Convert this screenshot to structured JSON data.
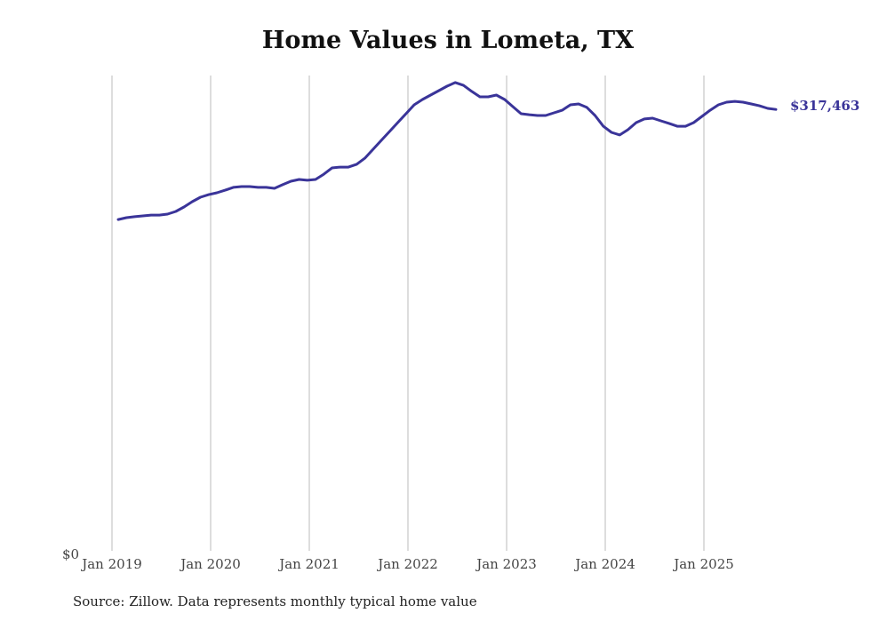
{
  "chart_data": {
    "type": "line",
    "title": "Home Values in Lometa, TX",
    "xlabel": "",
    "ylabel": "",
    "x_start": "2019-01",
    "x_frequency": "monthly",
    "x_tick_labels": [
      "Jan 2019",
      "Jan 2020",
      "Jan 2021",
      "Jan 2022",
      "Jan 2023",
      "Jan 2024",
      "Jan 2025"
    ],
    "y_tick_labels": [
      "$0"
    ],
    "ylim": [
      0,
      342000
    ],
    "grid": "vertical",
    "series": [
      {
        "name": "Typical home value",
        "color": "#3a3499",
        "end_label": "$317,463",
        "values": [
          238300,
          239600,
          240300,
          240900,
          241500,
          241500,
          242200,
          244100,
          247300,
          251100,
          254300,
          256200,
          257500,
          259400,
          261400,
          262000,
          262000,
          261400,
          261400,
          260700,
          263300,
          265800,
          267100,
          266500,
          267100,
          270900,
          275400,
          276000,
          276000,
          278000,
          282400,
          288800,
          295200,
          301600,
          308000,
          314400,
          320800,
          324600,
          327800,
          331000,
          334200,
          336800,
          334800,
          330400,
          326500,
          326500,
          327800,
          324600,
          319500,
          314400,
          313700,
          313100,
          313100,
          315000,
          316900,
          320800,
          321400,
          318900,
          313100,
          305400,
          301000,
          299100,
          302900,
          308000,
          310600,
          311200,
          309300,
          307400,
          305400,
          305400,
          308000,
          312500,
          316900,
          320800,
          322700,
          323300,
          322700,
          321400,
          320100,
          318200,
          317463
        ]
      }
    ]
  },
  "footer": {
    "source": "Source: Zillow. Data represents monthly typical home value"
  }
}
